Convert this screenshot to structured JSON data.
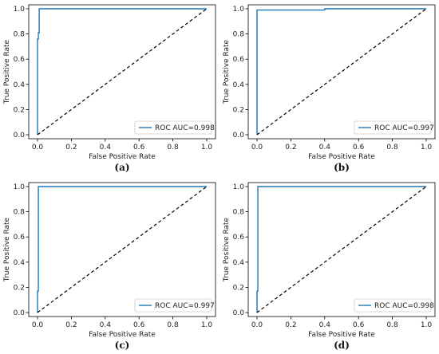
{
  "chart_data": [
    {
      "type": "line",
      "panel_label": "(a)",
      "xlabel": "False Positive Rate",
      "ylabel": "True Positive Rate",
      "xlim": [
        0,
        1
      ],
      "ylim": [
        0,
        1
      ],
      "xticks": [
        "0.0",
        "0.2",
        "0.4",
        "0.6",
        "0.8",
        "1.0"
      ],
      "yticks": [
        "0.0",
        "0.2",
        "0.4",
        "0.6",
        "0.8",
        "1.0"
      ],
      "grid": false,
      "legend_position": "lower-right",
      "series": [
        {
          "name": "ROC AUC=0.998",
          "color": "#1f77b4",
          "style": "solid",
          "x": [
            0,
            0.0,
            0.005,
            0.005,
            0.01,
            0.01,
            1.0
          ],
          "y": [
            0,
            0.76,
            0.76,
            0.81,
            0.81,
            1.0,
            1.0
          ]
        },
        {
          "style": "dashed",
          "color": "#000000",
          "x": [
            0,
            1
          ],
          "y": [
            0,
            1
          ]
        }
      ]
    },
    {
      "type": "line",
      "panel_label": "(b)",
      "xlabel": "False Positive Rate",
      "ylabel": "True Positive Rate",
      "xlim": [
        0,
        1
      ],
      "ylim": [
        0,
        1
      ],
      "xticks": [
        "0.0",
        "0.2",
        "0.4",
        "0.6",
        "0.8",
        "1.0"
      ],
      "yticks": [
        "0.0",
        "0.2",
        "0.4",
        "0.6",
        "0.8",
        "1.0"
      ],
      "grid": false,
      "legend_position": "lower-right",
      "series": [
        {
          "name": "ROC AUC=0.997",
          "color": "#1f77b4",
          "style": "solid",
          "x": [
            0,
            0.0,
            0.4,
            0.4,
            1.0
          ],
          "y": [
            0,
            0.99,
            0.99,
            1.0,
            1.0
          ]
        },
        {
          "style": "dashed",
          "color": "#000000",
          "x": [
            0,
            1
          ],
          "y": [
            0,
            1
          ]
        }
      ]
    },
    {
      "type": "line",
      "panel_label": "(c)",
      "xlabel": "False Positive Rate",
      "ylabel": "True Positive Rate",
      "xlim": [
        0,
        1
      ],
      "ylim": [
        0,
        1
      ],
      "xticks": [
        "0.0",
        "0.2",
        "0.4",
        "0.6",
        "0.8",
        "1.0"
      ],
      "yticks": [
        "0.0",
        "0.2",
        "0.4",
        "0.6",
        "0.8",
        "1.0"
      ],
      "grid": false,
      "legend_position": "lower-right",
      "series": [
        {
          "name": "ROC AUC=0.997",
          "color": "#1f77b4",
          "style": "solid",
          "x": [
            0,
            0.0,
            0.005,
            0.005,
            1.0
          ],
          "y": [
            0,
            0.17,
            0.17,
            1.0,
            1.0
          ]
        },
        {
          "style": "dashed",
          "color": "#000000",
          "x": [
            0,
            1
          ],
          "y": [
            0,
            1
          ]
        }
      ]
    },
    {
      "type": "line",
      "panel_label": "(d)",
      "xlabel": "False Positive Rate",
      "ylabel": "True Positive Rate",
      "xlim": [
        0,
        1
      ],
      "ylim": [
        0,
        1
      ],
      "xticks": [
        "0.0",
        "0.2",
        "0.4",
        "0.6",
        "0.8",
        "1.0"
      ],
      "yticks": [
        "0.0",
        "0.2",
        "0.4",
        "0.6",
        "0.8",
        "1.0"
      ],
      "grid": false,
      "legend_position": "lower-right",
      "series": [
        {
          "name": "ROC AUC=0.998",
          "color": "#1f77b4",
          "style": "solid",
          "x": [
            0,
            0.0,
            0.005,
            0.005,
            1.0
          ],
          "y": [
            0,
            0.17,
            0.17,
            1.0,
            1.0
          ]
        },
        {
          "style": "dashed",
          "color": "#000000",
          "x": [
            0,
            1
          ],
          "y": [
            0,
            1
          ]
        }
      ]
    }
  ]
}
